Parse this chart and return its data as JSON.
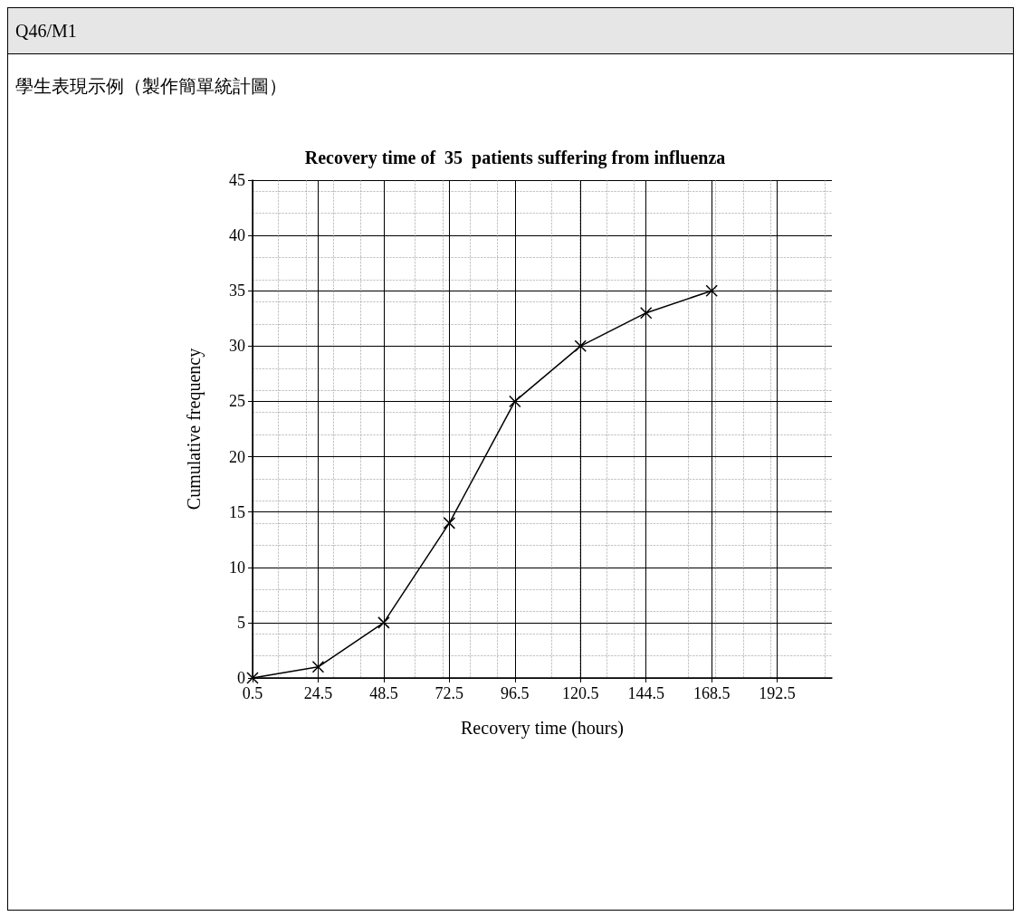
{
  "chart_data": {
    "type": "line",
    "title": "Recovery time of  35  patients suffering from influenza",
    "annotations": [
      "Q46/M1",
      "學生表現示例（製作簡單統計圖）"
    ],
    "xlabel": "Recovery time (hours)",
    "ylabel": "Cumulative frequency",
    "x": [
      0.5,
      24.5,
      48.5,
      72.5,
      96.5,
      120.5,
      144.5,
      168.5
    ],
    "series": [
      {
        "color": "#000000",
        "values": [
          0,
          1,
          5,
          14,
          25,
          30,
          33,
          35
        ]
      }
    ],
    "xlim": [
      0.5,
      212.5
    ],
    "xticks": [
      0.5,
      24.5,
      48.5,
      72.5,
      96.5,
      120.5,
      144.5,
      168.5,
      192.5
    ],
    "ylim": [
      0,
      45
    ],
    "yticks": [
      0,
      5,
      10,
      15,
      20,
      25,
      30,
      35,
      40,
      45
    ],
    "grid": true,
    "marker": "cross",
    "line_style": "solid"
  }
}
